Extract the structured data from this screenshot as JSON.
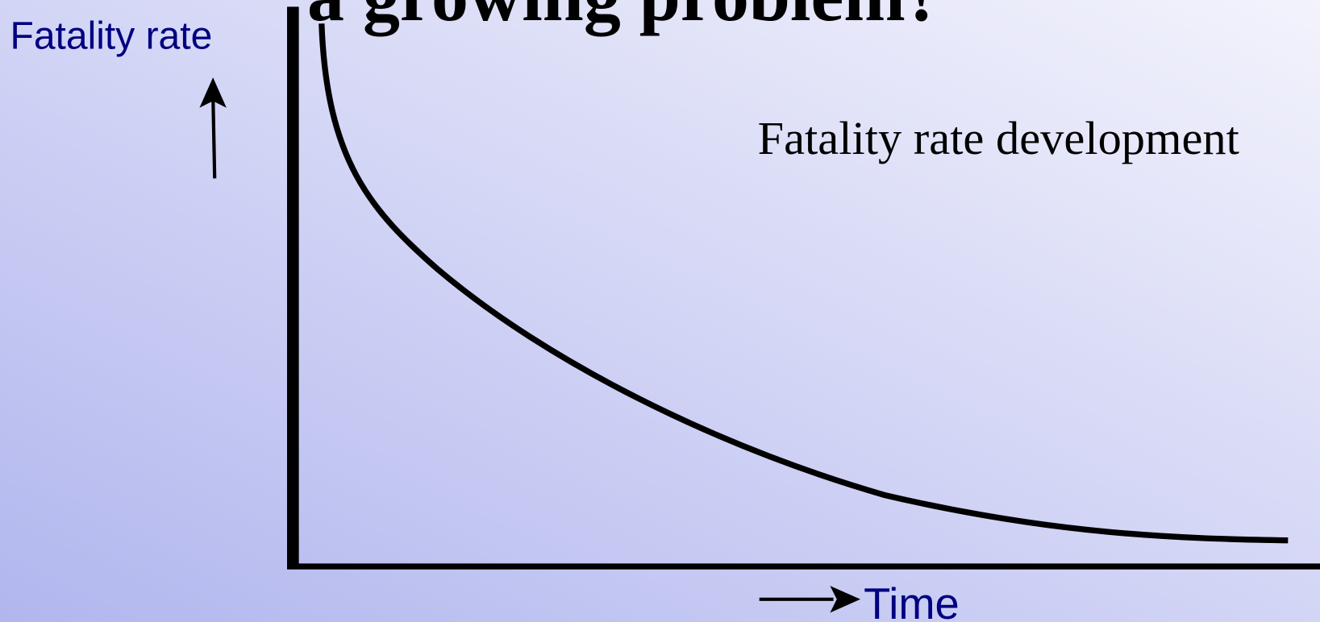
{
  "title": "a growing problem?",
  "y_axis_label": "Fatality rate",
  "x_axis_label": "Time",
  "curve_label": "Fatality rate development"
}
